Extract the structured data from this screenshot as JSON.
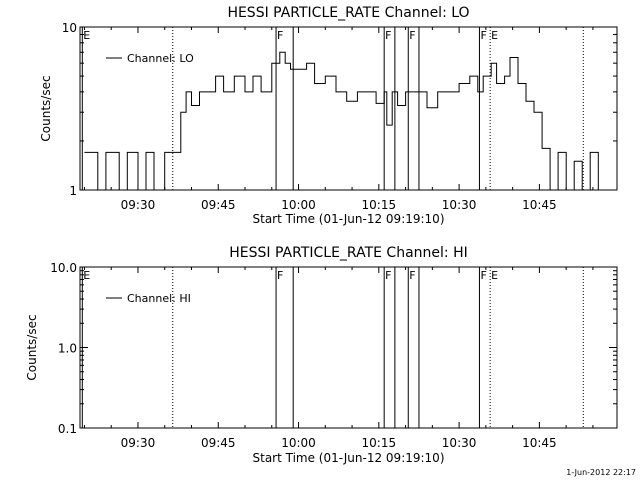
{
  "chart_data": [
    {
      "type": "line",
      "title": "HESSI PARTICLE_RATE Channel: LO",
      "xlabel": "Start Time (01-Jun-12 09:19:10)",
      "ylabel": "Counts/sec",
      "y_scale": "log",
      "ylim": [
        1,
        10
      ],
      "y_ticks": [
        "1",
        "10"
      ],
      "x_ticks": [
        "09:30",
        "09:45",
        "10:00",
        "10:15",
        "10:30",
        "10:45"
      ],
      "x_tick_minutes": [
        570,
        585,
        600,
        615,
        630,
        645
      ],
      "xlim_minutes": [
        559.17,
        659.5
      ],
      "series": [
        {
          "name": "Channel: LO",
          "x_minutes": [
            560.0,
            562.5,
            564.0,
            566.5,
            568.0,
            570.0,
            571.5,
            573.0,
            575.0,
            576.5,
            578.0,
            579.0,
            580.0,
            581.5,
            583.0,
            584.5,
            586.0,
            588.0,
            590.0,
            591.5,
            593.0,
            595.0,
            596.5,
            597.5,
            598.5,
            600.0,
            601.5,
            603.0,
            605.0,
            607.0,
            609.0,
            611.0,
            613.0,
            614.5,
            616.0,
            616.5,
            617.5,
            618.5,
            620.0,
            622.0,
            624.0,
            626.0,
            628.0,
            630.0,
            632.0,
            633.5,
            634.5,
            636.0,
            637.0,
            638.5,
            639.5,
            641.0,
            642.5,
            644.0,
            645.5,
            647.0,
            648.5,
            650.0,
            651.5,
            653.0,
            654.5,
            656.0,
            657.5
          ],
          "values": [
            1.7,
            1.0,
            1.7,
            1.0,
            1.7,
            1.0,
            1.7,
            1.0,
            1.7,
            1.7,
            3.0,
            4.0,
            3.3,
            4.0,
            4.0,
            5.0,
            4.0,
            5.0,
            4.0,
            5.0,
            4.0,
            6.0,
            7.0,
            6.0,
            5.5,
            5.5,
            6.0,
            4.5,
            5.0,
            4.0,
            3.5,
            4.0,
            4.0,
            3.4,
            4.0,
            2.5,
            4.0,
            3.3,
            4.0,
            4.0,
            3.2,
            4.0,
            4.0,
            4.5,
            5.0,
            4.0,
            5.0,
            6.0,
            4.5,
            5.0,
            6.5,
            4.5,
            3.5,
            3.0,
            1.8,
            1.0,
            1.7,
            1.0,
            1.5,
            1.0,
            1.7,
            1.0,
            1.0
          ]
        }
      ],
      "annotations": [
        {
          "label": "E",
          "x_minutes": 559.6,
          "style": "solid"
        },
        {
          "label": "",
          "x_minutes": 576.5,
          "style": "dotted"
        },
        {
          "label": "F",
          "x_minutes": 595.8,
          "style": "solid"
        },
        {
          "label": "",
          "x_minutes": 599.0,
          "style": "solid"
        },
        {
          "label": "F",
          "x_minutes": 616.0,
          "style": "solid"
        },
        {
          "label": "",
          "x_minutes": 618.0,
          "style": "solid"
        },
        {
          "label": "F",
          "x_minutes": 620.5,
          "style": "solid"
        },
        {
          "label": "",
          "x_minutes": 622.5,
          "style": "solid"
        },
        {
          "label": "F",
          "x_minutes": 633.8,
          "style": "solid"
        },
        {
          "label": "E",
          "x_minutes": 635.8,
          "style": "dotted"
        },
        {
          "label": "",
          "x_minutes": 653.2,
          "style": "dotted"
        }
      ]
    },
    {
      "type": "line",
      "title": "HESSI PARTICLE_RATE Channel: HI",
      "xlabel": "Start Time (01-Jun-12 09:19:10)",
      "ylabel": "Counts/sec",
      "y_scale": "log",
      "ylim": [
        0.1,
        10
      ],
      "y_ticks": [
        "0.1",
        "1.0",
        "10.0"
      ],
      "x_ticks": [
        "09:30",
        "09:45",
        "10:00",
        "10:15",
        "10:30",
        "10:45"
      ],
      "x_tick_minutes": [
        570,
        585,
        600,
        615,
        630,
        645
      ],
      "xlim_minutes": [
        559.17,
        659.5
      ],
      "series": [
        {
          "name": "Channel: HI",
          "x_minutes": [],
          "values": []
        }
      ],
      "annotations": [
        {
          "label": "E",
          "x_minutes": 559.6,
          "style": "solid"
        },
        {
          "label": "",
          "x_minutes": 576.5,
          "style": "dotted"
        },
        {
          "label": "F",
          "x_minutes": 595.8,
          "style": "solid"
        },
        {
          "label": "",
          "x_minutes": 599.0,
          "style": "solid"
        },
        {
          "label": "F",
          "x_minutes": 616.0,
          "style": "solid"
        },
        {
          "label": "",
          "x_minutes": 618.0,
          "style": "solid"
        },
        {
          "label": "F",
          "x_minutes": 620.5,
          "style": "solid"
        },
        {
          "label": "",
          "x_minutes": 622.5,
          "style": "solid"
        },
        {
          "label": "F",
          "x_minutes": 633.8,
          "style": "solid"
        },
        {
          "label": "E",
          "x_minutes": 635.8,
          "style": "dotted"
        },
        {
          "label": "",
          "x_minutes": 653.2,
          "style": "dotted"
        }
      ]
    }
  ],
  "footer": {
    "timestamp": "1-Jun-2012 22:17"
  },
  "colors": {
    "line": "#000000",
    "background": "#ffffff"
  }
}
